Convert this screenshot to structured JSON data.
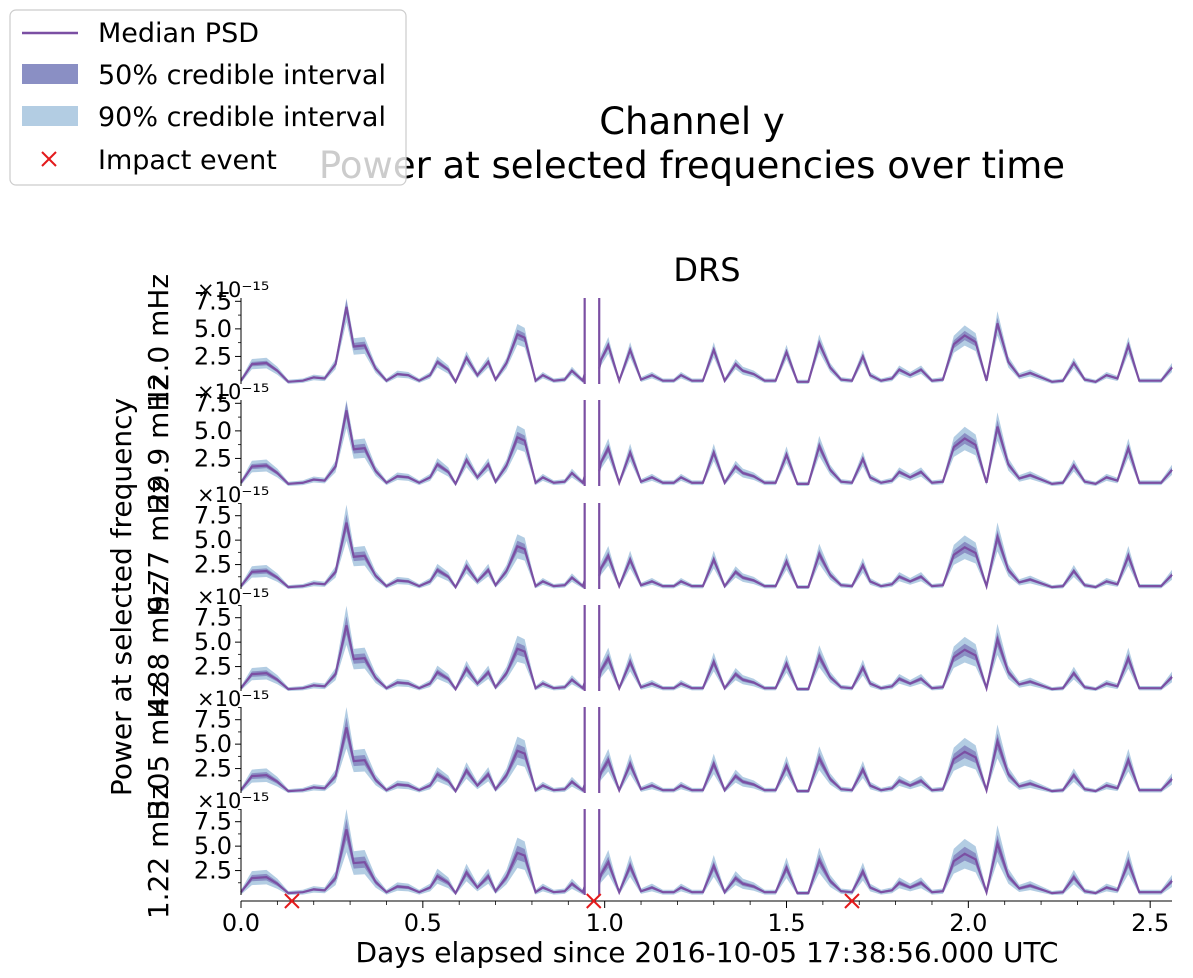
{
  "legend": {
    "items": [
      {
        "label": "Median PSD",
        "kind": "line",
        "color": "#7b4fa3"
      },
      {
        "label": "50% credible interval",
        "kind": "patch",
        "color": "#8a8fc4"
      },
      {
        "label": "90% credible interval",
        "kind": "patch",
        "color": "#b3cde3"
      },
      {
        "label": "Impact event",
        "kind": "marker",
        "color": "#e31a1c"
      }
    ],
    "placement": "top-left"
  },
  "figure": {
    "title_line1": "Channel y",
    "title_line2": "Power at selected frequencies over time",
    "panel_title": "DRS",
    "ylabel": "Power at selected frequency",
    "xlabel": "Days elapsed since 2016-10-05 17:38:56.000 UTC"
  },
  "colors": {
    "median": "#7b4fa3",
    "ci50": "#8a8fc4",
    "ci90": "#b3cde3",
    "impact": "#e31a1c"
  },
  "chart_data": {
    "type": "line",
    "x_unit": "days",
    "xlim": [
      0.0,
      2.56
    ],
    "x_ticks": [
      0.0,
      0.5,
      1.0,
      1.5,
      2.0,
      2.5
    ],
    "x_tick_labels": [
      "0.0",
      "0.5",
      "1.0",
      "1.5",
      "2.0",
      "2.5"
    ],
    "y_scale_label": "×10⁻¹⁵",
    "grid": false,
    "impact_events": [
      0.14,
      0.97,
      1.68
    ],
    "data_gap": [
      0.945,
      0.985
    ],
    "base_series": {
      "x": [
        0.0,
        0.03,
        0.07,
        0.1,
        0.13,
        0.17,
        0.2,
        0.23,
        0.26,
        0.29,
        0.31,
        0.34,
        0.37,
        0.4,
        0.43,
        0.46,
        0.49,
        0.52,
        0.54,
        0.57,
        0.59,
        0.62,
        0.65,
        0.68,
        0.7,
        0.73,
        0.76,
        0.78,
        0.81,
        0.83,
        0.86,
        0.89,
        0.91,
        0.94,
        0.945,
        0.985,
        0.99,
        1.01,
        1.04,
        1.07,
        1.1,
        1.13,
        1.16,
        1.19,
        1.21,
        1.24,
        1.27,
        1.3,
        1.33,
        1.36,
        1.38,
        1.41,
        1.44,
        1.47,
        1.5,
        1.53,
        1.56,
        1.59,
        1.62,
        1.65,
        1.68,
        1.71,
        1.73,
        1.76,
        1.79,
        1.81,
        1.84,
        1.87,
        1.9,
        1.93,
        1.96,
        1.99,
        2.02,
        2.05,
        2.08,
        2.11,
        2.14,
        2.17,
        2.2,
        2.23,
        2.26,
        2.29,
        2.32,
        2.35,
        2.38,
        2.41,
        2.44,
        2.47,
        2.5,
        2.53,
        2.56
      ],
      "median": [
        0.3,
        1.8,
        1.9,
        1.2,
        0.2,
        0.3,
        0.6,
        0.5,
        1.8,
        7.0,
        3.4,
        3.5,
        1.4,
        0.3,
        0.9,
        0.8,
        0.3,
        0.8,
        2.0,
        1.3,
        0.2,
        2.4,
        0.8,
        2.0,
        0.4,
        1.9,
        4.5,
        4.2,
        0.3,
        0.8,
        0.3,
        0.4,
        1.2,
        0.3,
        0.9,
        1.4,
        2.2,
        3.5,
        0.3,
        3.1,
        0.4,
        0.8,
        0.3,
        0.3,
        0.8,
        0.3,
        0.3,
        3.1,
        0.3,
        1.8,
        1.2,
        0.9,
        0.3,
        0.3,
        2.9,
        0.2,
        0.2,
        3.7,
        1.5,
        0.4,
        0.3,
        2.5,
        0.8,
        0.3,
        0.5,
        1.3,
        0.8,
        1.3,
        0.3,
        0.4,
        3.6,
        4.4,
        3.8,
        0.3,
        5.5,
        2.0,
        0.7,
        1.0,
        0.6,
        0.2,
        0.3,
        1.9,
        0.4,
        0.2,
        0.8,
        0.5,
        3.5,
        0.3,
        0.3,
        0.3,
        1.5
      ],
      "ci50_halfwidth_fraction": 0.12,
      "ci90_halfwidth_fraction": 0.25
    },
    "panels": [
      {
        "label": "12.0 mHz",
        "ylim": [
          0,
          7.8
        ],
        "y_ticks": [
          2.5,
          5.0,
          7.5
        ],
        "y_tick_labels": [
          "2.5",
          "5.0",
          "7.5"
        ],
        "scale": 1.0,
        "ci_scale": 0.7
      },
      {
        "label": "29.9 mHz",
        "ylim": [
          0,
          7.8
        ],
        "y_ticks": [
          2.5,
          5.0,
          7.5
        ],
        "y_tick_labels": [
          "2.5",
          "5.0",
          "7.5"
        ],
        "scale": 0.98,
        "ci_scale": 0.85
      },
      {
        "label": "9.77 mHz",
        "ylim": [
          0,
          8.8
        ],
        "y_ticks": [
          2.5,
          5.0,
          7.5
        ],
        "y_tick_labels": [
          "2.5",
          "5.0",
          "7.5"
        ],
        "scale": 0.97,
        "ci_scale": 1.0
      },
      {
        "label": "4.88 mHz",
        "ylim": [
          0,
          8.8
        ],
        "y_ticks": [
          2.5,
          5.0,
          7.5
        ],
        "y_tick_labels": [
          "2.5",
          "5.0",
          "7.5"
        ],
        "scale": 0.96,
        "ci_scale": 1.1
      },
      {
        "label": "3.05 mHz",
        "ylim": [
          0,
          8.8
        ],
        "y_ticks": [
          2.5,
          5.0,
          7.5
        ],
        "y_tick_labels": [
          "2.5",
          "5.0",
          "7.5"
        ],
        "scale": 0.96,
        "ci_scale": 1.2
      },
      {
        "label": "1.22 mHz",
        "ylim": [
          0,
          8.8
        ],
        "y_ticks": [
          2.5,
          5.0,
          7.5
        ],
        "y_tick_labels": [
          "2.5",
          "5.0",
          "7.5"
        ],
        "scale": 0.96,
        "ci_scale": 1.3
      }
    ]
  }
}
